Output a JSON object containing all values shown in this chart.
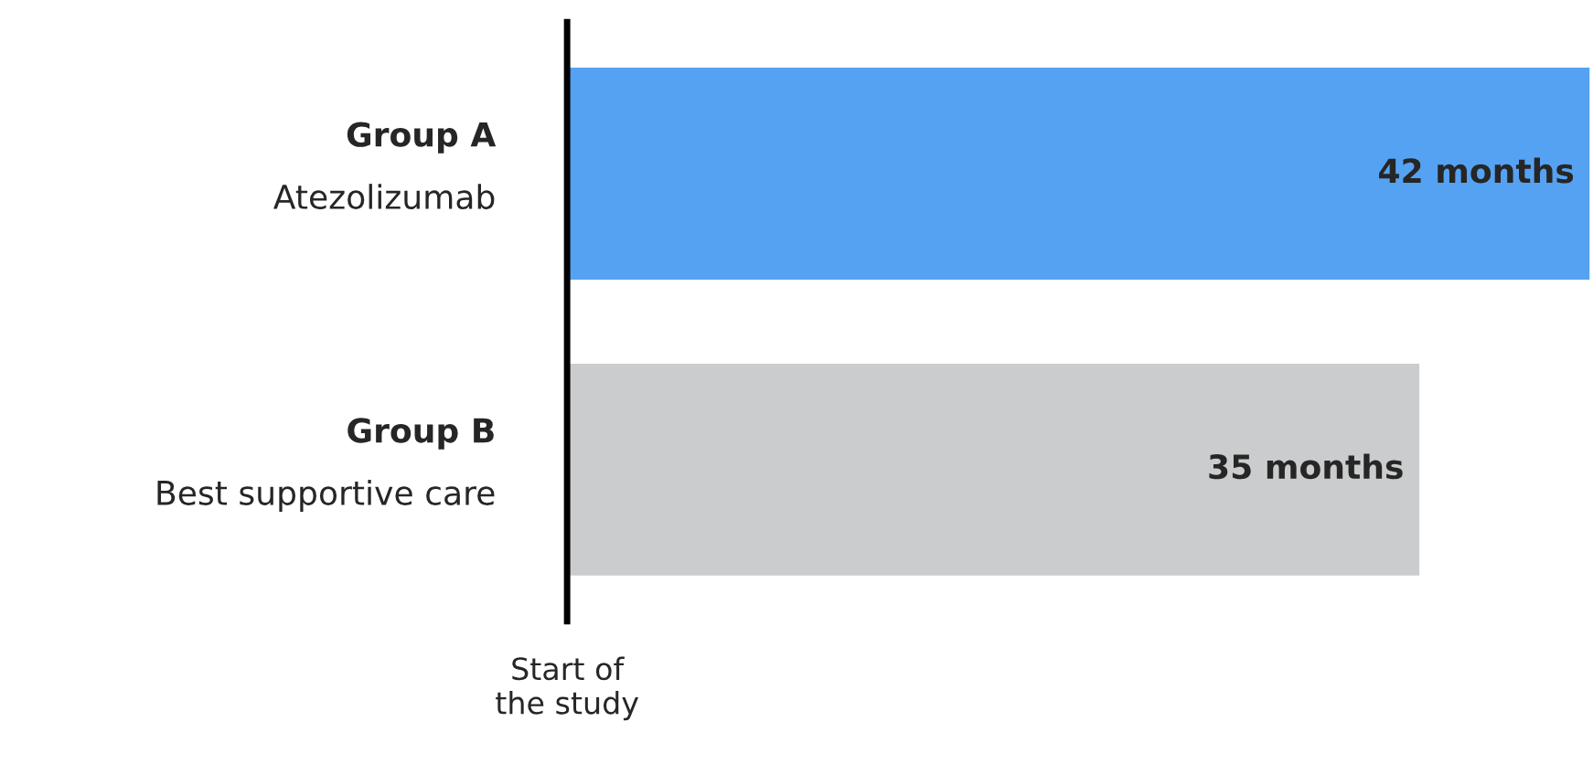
{
  "chart_data": {
    "type": "bar",
    "orientation": "horizontal",
    "categories": [
      "Group A\nAtezolizumab",
      "Group B\nBest supportive care"
    ],
    "values": [
      42,
      35
    ],
    "colors": [
      "#55a2f2",
      "#cbcccd"
    ],
    "value_labels": [
      "42 months",
      "35 months"
    ],
    "xlim": [
      0,
      42
    ],
    "annotations": [
      "Start of\nthe study"
    ]
  }
}
